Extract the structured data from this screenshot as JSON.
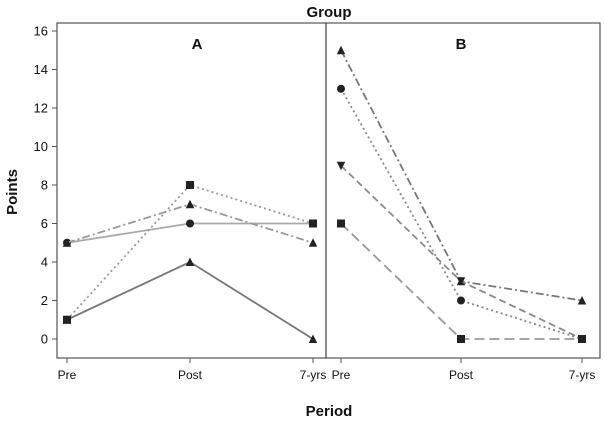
{
  "chart_data": {
    "type": "line",
    "title": "Group",
    "xlabel": "Period",
    "ylabel": "Points",
    "ylim": [
      0,
      16
    ],
    "yticks": [
      0,
      2,
      4,
      6,
      8,
      10,
      12,
      14,
      16
    ],
    "grid": false,
    "categories": [
      "Pre",
      "Post",
      "7-yrs"
    ],
    "panels": [
      {
        "label": "A",
        "series": [
          {
            "values": [
              1,
              4,
              0
            ],
            "line": "solid",
            "color": "#777777",
            "marker": "triangle"
          },
          {
            "values": [
              5,
              6,
              6
            ],
            "line": "solid",
            "color": "#aaaaaa",
            "marker": "circle"
          },
          {
            "values": [
              1,
              8,
              6
            ],
            "line": "dotted",
            "color": "#999999",
            "marker": "square"
          },
          {
            "values": [
              5,
              7,
              5
            ],
            "line": "dashdot",
            "color": "#999999",
            "marker": "triangle"
          }
        ]
      },
      {
        "label": "B",
        "series": [
          {
            "values": [
              15,
              3,
              2
            ],
            "line": "dashdot",
            "color": "#777777",
            "marker": "triangle"
          },
          {
            "values": [
              13,
              2,
              0
            ],
            "line": "dotted",
            "color": "#888888",
            "marker": "circle"
          },
          {
            "values": [
              9,
              3,
              0
            ],
            "line": "dashed",
            "color": "#888888",
            "marker": "triangle-down"
          },
          {
            "values": [
              6,
              0,
              0
            ],
            "line": "longdash",
            "color": "#999999",
            "marker": "square"
          }
        ]
      }
    ]
  }
}
